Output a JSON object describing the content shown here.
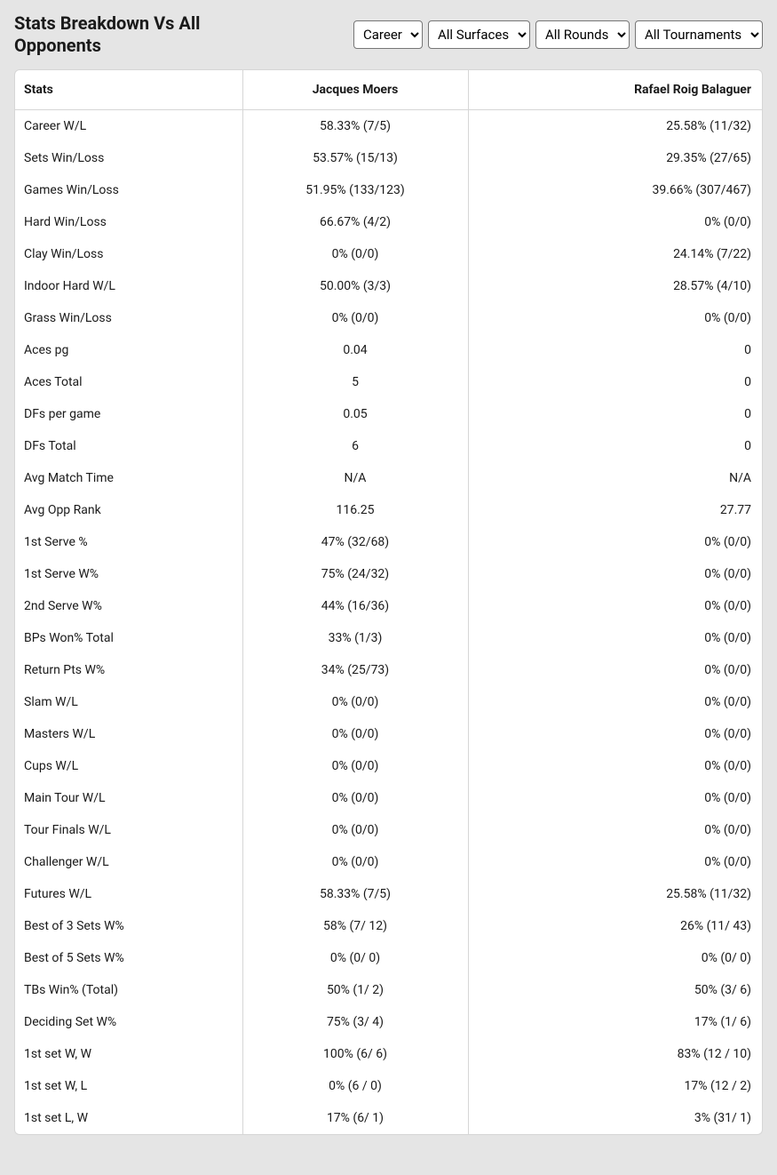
{
  "title": "Stats Breakdown Vs All Opponents",
  "filters": {
    "time": {
      "selected": "Career",
      "options": [
        "Career"
      ]
    },
    "surface": {
      "selected": "All Surfaces",
      "options": [
        "All Surfaces"
      ]
    },
    "round": {
      "selected": "All Rounds",
      "options": [
        "All Rounds"
      ]
    },
    "tournament": {
      "selected": "All Tournaments",
      "options": [
        "All Tournaments"
      ]
    }
  },
  "columns": {
    "stats": "Stats",
    "player1": "Jacques Moers",
    "player2": "Rafael Roig Balaguer"
  },
  "rows": [
    {
      "stat": "Career W/L",
      "p1": "58.33% (7/5)",
      "p2": "25.58% (11/32)"
    },
    {
      "stat": "Sets Win/Loss",
      "p1": "53.57% (15/13)",
      "p2": "29.35% (27/65)"
    },
    {
      "stat": "Games Win/Loss",
      "p1": "51.95% (133/123)",
      "p2": "39.66% (307/467)"
    },
    {
      "stat": "Hard Win/Loss",
      "p1": "66.67% (4/2)",
      "p2": "0% (0/0)"
    },
    {
      "stat": "Clay Win/Loss",
      "p1": "0% (0/0)",
      "p2": "24.14% (7/22)"
    },
    {
      "stat": "Indoor Hard W/L",
      "p1": "50.00% (3/3)",
      "p2": "28.57% (4/10)"
    },
    {
      "stat": "Grass Win/Loss",
      "p1": "0% (0/0)",
      "p2": "0% (0/0)"
    },
    {
      "stat": "Aces pg",
      "p1": "0.04",
      "p2": "0"
    },
    {
      "stat": "Aces Total",
      "p1": "5",
      "p2": "0"
    },
    {
      "stat": "DFs per game",
      "p1": "0.05",
      "p2": "0"
    },
    {
      "stat": "DFs Total",
      "p1": "6",
      "p2": "0"
    },
    {
      "stat": "Avg Match Time",
      "p1": "N/A",
      "p2": "N/A"
    },
    {
      "stat": "Avg Opp Rank",
      "p1": "116.25",
      "p2": "27.77"
    },
    {
      "stat": "1st Serve %",
      "p1": "47% (32/68)",
      "p2": "0% (0/0)"
    },
    {
      "stat": "1st Serve W%",
      "p1": "75% (24/32)",
      "p2": "0% (0/0)"
    },
    {
      "stat": "2nd Serve W%",
      "p1": "44% (16/36)",
      "p2": "0% (0/0)"
    },
    {
      "stat": "BPs Won% Total",
      "p1": "33% (1/3)",
      "p2": "0% (0/0)"
    },
    {
      "stat": "Return Pts W%",
      "p1": "34% (25/73)",
      "p2": "0% (0/0)"
    },
    {
      "stat": "Slam W/L",
      "p1": "0% (0/0)",
      "p2": "0% (0/0)"
    },
    {
      "stat": "Masters W/L",
      "p1": "0% (0/0)",
      "p2": "0% (0/0)"
    },
    {
      "stat": "Cups W/L",
      "p1": "0% (0/0)",
      "p2": "0% (0/0)"
    },
    {
      "stat": "Main Tour W/L",
      "p1": "0% (0/0)",
      "p2": "0% (0/0)"
    },
    {
      "stat": "Tour Finals W/L",
      "p1": "0% (0/0)",
      "p2": "0% (0/0)"
    },
    {
      "stat": "Challenger W/L",
      "p1": "0% (0/0)",
      "p2": "0% (0/0)"
    },
    {
      "stat": "Futures W/L",
      "p1": "58.33% (7/5)",
      "p2": "25.58% (11/32)"
    },
    {
      "stat": "Best of 3 Sets W%",
      "p1": "58% (7/ 12)",
      "p2": "26% (11/ 43)"
    },
    {
      "stat": "Best of 5 Sets W%",
      "p1": "0% (0/ 0)",
      "p2": "0% (0/ 0)"
    },
    {
      "stat": "TBs Win% (Total)",
      "p1": "50% (1/ 2)",
      "p2": "50% (3/ 6)"
    },
    {
      "stat": "Deciding Set W%",
      "p1": "75% (3/ 4)",
      "p2": "17% (1/ 6)"
    },
    {
      "stat": "1st set W, W",
      "p1": "100% (6/ 6)",
      "p2": "83% (12 / 10)"
    },
    {
      "stat": "1st set W, L",
      "p1": "0% (6 / 0)",
      "p2": "17% (12 / 2)"
    },
    {
      "stat": "1st set L, W",
      "p1": "17% (6/ 1)",
      "p2": "3% (31/ 1)"
    }
  ]
}
